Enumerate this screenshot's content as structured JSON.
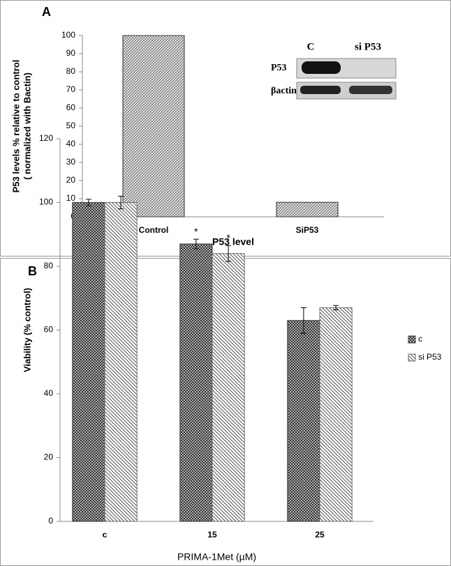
{
  "chart_data": [
    {
      "type": "bar",
      "panel": "A",
      "ylabel": [
        "P53  levels % relative to control",
        "( normalized with Bactin)"
      ],
      "xlabel": "P53 level",
      "categories": [
        "Control",
        "SiP53"
      ],
      "values": [
        100,
        8
      ],
      "color": "#8c8c8c",
      "ylim": [
        0,
        100
      ],
      "yticks": [
        0,
        10,
        20,
        30,
        40,
        50,
        60,
        70,
        80,
        90,
        100
      ],
      "grid": false,
      "inset": {
        "columns": [
          "C",
          "si P53"
        ],
        "rows": [
          "P53",
          "βactin"
        ]
      }
    },
    {
      "type": "bar",
      "panel": "B",
      "ylabel": [
        "Viability (% control)"
      ],
      "xlabel": "PRIMA-1Met (µM)",
      "categories": [
        "c",
        "15",
        "25"
      ],
      "series": [
        {
          "name": "c",
          "color": "#3a3a3a",
          "values": [
            100,
            87,
            63
          ],
          "errors": [
            1,
            1.5,
            4
          ]
        },
        {
          "name": "si P53",
          "color": "#6e6e6e",
          "values": [
            100,
            84,
            67
          ],
          "errors": [
            2,
            2.5,
            0.7
          ]
        }
      ],
      "annotations": [
        "*",
        "*"
      ],
      "ylim": [
        0,
        120
      ],
      "yticks": [
        0,
        20,
        40,
        60,
        80,
        100,
        120
      ],
      "grid": false,
      "legend": "right"
    }
  ]
}
